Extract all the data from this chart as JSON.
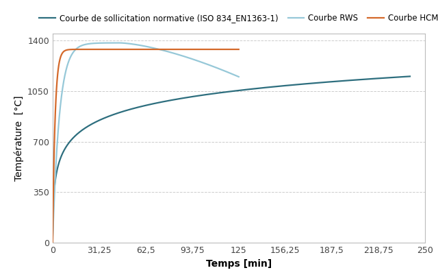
{
  "xlabel": "Temps [min]",
  "ylabel": "Température  [°C]",
  "xlim": [
    0,
    250
  ],
  "ylim": [
    0,
    1450
  ],
  "xticks": [
    0,
    31.25,
    62.5,
    93.75,
    125,
    156.25,
    187.5,
    218.75,
    250
  ],
  "xtick_labels": [
    "0",
    "31,25",
    "62,5",
    "93,75",
    "125",
    "156,25",
    "187,5",
    "218,75",
    "250"
  ],
  "yticks": [
    0,
    350,
    700,
    1050,
    1400
  ],
  "ytick_labels": [
    "0",
    "350",
    "700",
    "1050",
    "1400"
  ],
  "grid_yticks": [
    350,
    700,
    1050,
    1400
  ],
  "iso_color": "#2d6e7e",
  "hcm_color": "#d4692a",
  "rws_color": "#96c8d8",
  "iso_label": "Courbe de sollicitation normative (ISO 834_EN1363-1)",
  "hcm_label": "Courbe HCM",
  "rws_label": "Courbe RWS",
  "background_color": "#ffffff",
  "legend_fontsize": 8.5,
  "axis_label_fontsize": 10,
  "tick_fontsize": 9,
  "linewidth": 1.6,
  "grid_color": "#cccccc",
  "spine_color": "#bbbbbb"
}
